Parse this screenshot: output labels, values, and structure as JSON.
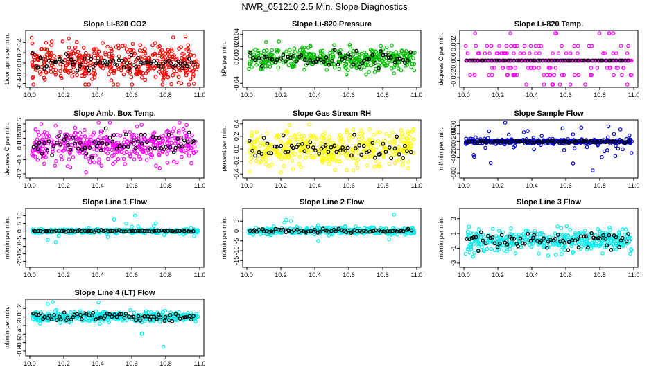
{
  "title": "NWR_051210  2.5 Min. Slope Diagnostics",
  "colors": {
    "black": "#000000"
  },
  "chart_data": [
    {
      "type": "scatter",
      "title": "Slope Li-820 CO2",
      "ylabel": "Licor ppm per min.",
      "color": "#ff0000",
      "xlim": [
        10.0,
        11.0
      ],
      "xticks": [
        "10.0",
        "10.2",
        "10.4",
        "10.6",
        "10.8",
        "11.0"
      ],
      "ylim": [
        -0.42,
        0.58
      ],
      "yticks": [
        {
          "v": -0.4,
          "l": "-0.4"
        },
        {
          "v": -0.2,
          "l": "-0.2"
        },
        {
          "v": 0.0,
          "l": "0.0"
        },
        {
          "v": 0.2,
          "l": "0.2"
        },
        {
          "v": 0.4,
          "l": "0.4"
        }
      ],
      "spread": 0.18,
      "n": 420,
      "nblack": 70,
      "blackspread": 0.08
    },
    {
      "type": "scatter",
      "title": "Slope Li-820 Pressure",
      "ylabel": "kPa per min.",
      "color": "#00bb00",
      "xlim": [
        10.0,
        11.0
      ],
      "xticks": [
        "10.0",
        "10.2",
        "10.4",
        "10.6",
        "10.8",
        "11.0"
      ],
      "ylim": [
        -0.042,
        0.042
      ],
      "yticks": [
        {
          "v": -0.04,
          "l": "-0.04"
        },
        {
          "v": 0.0,
          "l": "0.00"
        },
        {
          "v": 0.02,
          "l": "0.02"
        },
        {
          "v": 0.04,
          "l": "0.04"
        }
      ],
      "spread": 0.009,
      "n": 420,
      "nblack": 60,
      "blackspread": 0.006
    },
    {
      "type": "scatter",
      "title": "Slope Li-820 Temp.",
      "ylabel": "degrees C per min.",
      "color": "#ff00ff",
      "xlim": [
        10.0,
        11.0
      ],
      "xticks": [
        "10.0",
        "10.2",
        "10.4",
        "10.6",
        "10.8",
        "11.0"
      ],
      "ylim": [
        -0.0028,
        0.0032
      ],
      "yticks": [
        {
          "v": -0.002,
          "l": "-0.002"
        },
        {
          "v": 0.0,
          "l": "0.000"
        },
        {
          "v": 0.002,
          "l": "0.002"
        }
      ],
      "quantized": [
        0.0,
        0.00085,
        -0.00085,
        0.0017,
        -0.0017,
        0.0032,
        -0.0028
      ],
      "n": 420,
      "nblack": 60
    },
    {
      "type": "scatter",
      "title": "Slope Amb. Box Temp.",
      "ylabel": "degrees C per min.",
      "color": "#ff00ff",
      "xlim": [
        10.0,
        11.0
      ],
      "xticks": [
        "10.0",
        "10.2",
        "10.4",
        "10.6",
        "10.8",
        "11.0"
      ],
      "ylim": [
        -0.21,
        0.16
      ],
      "yticks": [
        {
          "v": -0.2,
          "l": "-0.2"
        },
        {
          "v": -0.1,
          "l": "-0.1"
        },
        {
          "v": 0.0,
          "l": "0.0"
        },
        {
          "v": 0.05,
          "l": "0.05"
        },
        {
          "v": 0.1,
          "l": "0.10"
        },
        {
          "v": 0.15,
          "l": "0.15"
        }
      ],
      "spread": 0.06,
      "n": 420,
      "nblack": 70,
      "blackspread": 0.04
    },
    {
      "type": "scatter",
      "title": "Slope Gas Stream RH",
      "ylabel": "percent per min.",
      "color": "#ffff00",
      "xlim": [
        10.0,
        11.0
      ],
      "xticks": [
        "10.0",
        "10.2",
        "10.4",
        "10.6",
        "10.8",
        "11.0"
      ],
      "ylim": [
        -0.42,
        0.42
      ],
      "yticks": [
        {
          "v": -0.4,
          "l": "-0.4"
        },
        {
          "v": -0.2,
          "l": "-0.2"
        },
        {
          "v": 0.0,
          "l": "0.0"
        },
        {
          "v": 0.2,
          "l": "0.2"
        },
        {
          "v": 0.4,
          "l": "0.4"
        }
      ],
      "spread": 0.14,
      "n": 420,
      "nblack": 60,
      "blackspread": 0.09
    },
    {
      "type": "scatter",
      "title": "Slope Sample Flow",
      "ylabel": "ml/min per min.",
      "color": "#0000dd",
      "xlim": [
        10.0,
        11.0
      ],
      "xticks": [
        "10.0",
        "10.2",
        "10.4",
        "10.6",
        "10.8",
        "11.0"
      ],
      "ylim": [
        -850,
        480
      ],
      "yticks": [
        {
          "v": -800,
          "l": "-800"
        },
        {
          "v": -400,
          "l": "-400"
        },
        {
          "v": -200,
          "l": "-200"
        },
        {
          "v": 0,
          "l": "0"
        },
        {
          "v": 200,
          "l": "200"
        },
        {
          "v": 400,
          "l": "400"
        }
      ],
      "spread": 25,
      "n": 420,
      "nblack": 70,
      "blackspread": 15,
      "outliers": 0.12,
      "outlierspread": 300
    },
    {
      "type": "scatter",
      "title": "Slope Line 1 Flow",
      "ylabel": "ml/min per min.",
      "color": "#00eeee",
      "xlim": [
        10.0,
        11.0
      ],
      "xticks": [
        "10.0",
        "10.2",
        "10.4",
        "10.6",
        "10.8",
        "11.0"
      ],
      "ylim": [
        -22,
        13
      ],
      "yticks": [
        {
          "v": -20,
          "l": "-20"
        },
        {
          "v": -15,
          "l": "-15"
        },
        {
          "v": -10,
          "l": "-10"
        },
        {
          "v": -5,
          "l": "-5"
        },
        {
          "v": 0,
          "l": "0"
        },
        {
          "v": 5,
          "l": "5"
        },
        {
          "v": 10,
          "l": "10"
        }
      ],
      "spread": 0.6,
      "n": 400,
      "nblack": 70,
      "blackspread": 0.3,
      "outliers": 0.03,
      "outlierspread": 6
    },
    {
      "type": "scatter",
      "title": "Slope Line 2 Flow",
      "ylabel": "ml/min per min.",
      "color": "#00eeee",
      "xlim": [
        10.0,
        11.0
      ],
      "xticks": [
        "10.0",
        "10.2",
        "10.4",
        "10.6",
        "10.8",
        "11.0"
      ],
      "ylim": [
        -17,
        10
      ],
      "yticks": [
        {
          "v": -15,
          "l": "-15"
        },
        {
          "v": -10,
          "l": "-10"
        },
        {
          "v": -5,
          "l": "-5"
        },
        {
          "v": 0,
          "l": "0"
        },
        {
          "v": 5,
          "l": "5"
        }
      ],
      "spread": 0.8,
      "n": 400,
      "nblack": 70,
      "blackspread": 0.5,
      "outliers": 0.03,
      "outlierspread": 5
    },
    {
      "type": "scatter",
      "title": "Slope Line 3 Flow",
      "ylabel": "ml/min per min.",
      "color": "#00eeee",
      "xlim": [
        10.0,
        11.0
      ],
      "xticks": [
        "10.0",
        "10.2",
        "10.4",
        "10.6",
        "10.8",
        "11.0"
      ],
      "ylim": [
        -3.2,
        4.0
      ],
      "yticks": [
        {
          "v": -3,
          "l": "-3"
        },
        {
          "v": -1,
          "l": "-1"
        },
        {
          "v": 1,
          "l": "1"
        },
        {
          "v": 3,
          "l": "3"
        }
      ],
      "spread": 0.7,
      "n": 420,
      "nblack": 70,
      "blackspread": 0.6
    },
    {
      "type": "scatter",
      "title": "Slope Line 4 (LT) Flow",
      "ylabel": "ml/min per min.",
      "color": "#00eeee",
      "xlim": [
        10.0,
        11.0
      ],
      "xticks": [
        "10.0",
        "10.2",
        "10.4",
        "10.6",
        "10.8",
        "11.0"
      ],
      "ylim": [
        -0.85,
        0.35
      ],
      "yticks": [
        {
          "v": -0.8,
          "l": "-0.8"
        },
        {
          "v": -0.6,
          "l": "-0.6"
        },
        {
          "v": -0.4,
          "l": "-0.4"
        },
        {
          "v": -0.2,
          "l": "-0.2"
        },
        {
          "v": 0.0,
          "l": "0.0"
        },
        {
          "v": 0.2,
          "l": "0.2"
        }
      ],
      "spread": 0.06,
      "n": 400,
      "nblack": 70,
      "blackspread": 0.05,
      "outliers": 0.02,
      "outlierspread": 0.3
    }
  ]
}
